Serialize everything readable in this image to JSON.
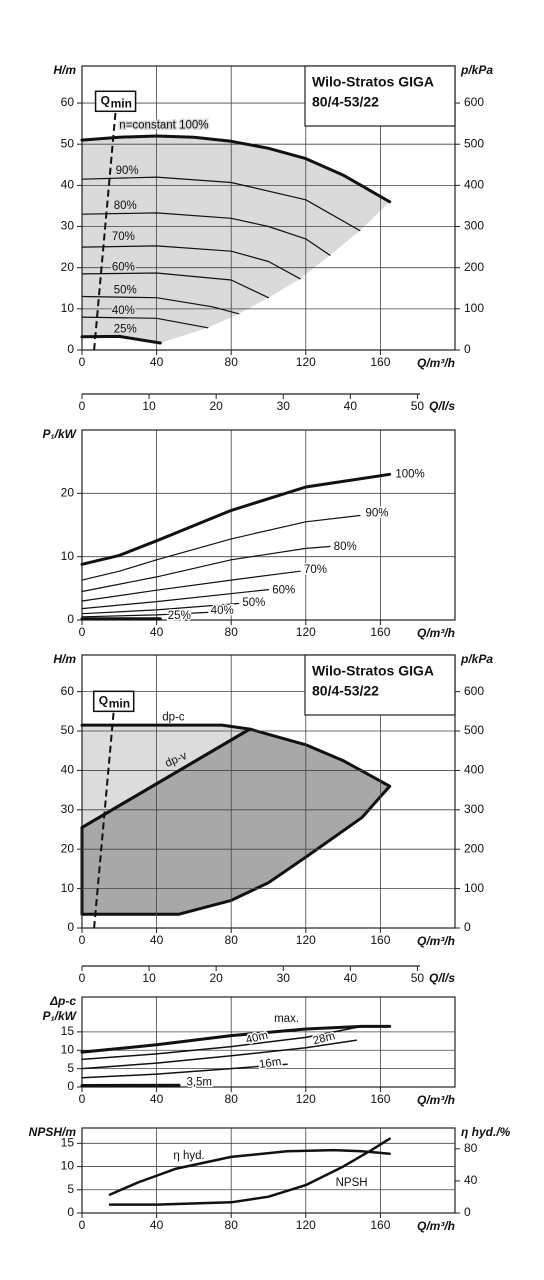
{
  "chart_data": [
    {
      "type": "line",
      "title": "Wilo-Stratos GIGA",
      "subtitle": "80/4-53/22",
      "ylabel": [
        "H/m"
      ],
      "y2label": "p/kPa",
      "xlabel": "Q/m³/h",
      "x2label": "Q/l/s",
      "xlim": [
        0,
        200
      ],
      "xticks": [
        0,
        40,
        80,
        120,
        160
      ],
      "x2lim": [
        0,
        55.6
      ],
      "x2ticks": [
        0,
        10,
        20,
        30,
        40,
        50
      ],
      "ylim": [
        0,
        69
      ],
      "yticks": [
        0,
        10,
        20,
        30,
        40,
        50,
        60
      ],
      "y2lim": [
        0,
        690
      ],
      "y2ticks": [
        0,
        100,
        200,
        300,
        400,
        500,
        600
      ],
      "grid": true,
      "qmin": {
        "label": "Q",
        "sub": "min",
        "x": [
          6.5,
          18
        ],
        "values": [
          0,
          58
        ]
      },
      "regions": [
        {
          "color": "#dadada",
          "x": [
            0,
            20,
            40,
            60,
            80,
            100,
            120,
            140,
            165,
            149,
            133,
            117,
            100,
            84,
            67.5,
            42,
            20,
            0
          ],
          "values": [
            51,
            51.7,
            52,
            51.7,
            50.7,
            49,
            46.5,
            42.5,
            36,
            29,
            23,
            17.3,
            12.7,
            8.8,
            5.4,
            1.7,
            3.3,
            3.2
          ]
        }
      ],
      "series": [
        {
          "name": "n=constant 100%",
          "color": "#111111",
          "width": 3,
          "x": [
            0,
            20,
            40,
            60,
            80,
            100,
            120,
            140,
            165
          ],
          "values": [
            51,
            51.7,
            52,
            51.7,
            50.7,
            49,
            46.5,
            42.5,
            36
          ]
        },
        {
          "name": "90%",
          "color": "#111111",
          "width": 1.2,
          "x": [
            0,
            40,
            80,
            120,
            149
          ],
          "values": [
            41.5,
            42,
            40.7,
            36.5,
            29
          ]
        },
        {
          "name": "80%",
          "color": "#111111",
          "width": 1.2,
          "x": [
            0,
            40,
            80,
            100,
            120,
            133
          ],
          "values": [
            33,
            33.3,
            32,
            30,
            27,
            23
          ]
        },
        {
          "name": "70%",
          "color": "#111111",
          "width": 1.2,
          "x": [
            0,
            40,
            80,
            100,
            117
          ],
          "values": [
            25,
            25.3,
            24,
            21.5,
            17.3
          ]
        },
        {
          "name": "60%",
          "color": "#111111",
          "width": 1.2,
          "x": [
            0,
            40,
            80,
            100
          ],
          "values": [
            18.5,
            18.7,
            17,
            12.7
          ]
        },
        {
          "name": "50%",
          "color": "#111111",
          "width": 1.2,
          "x": [
            0,
            40,
            70,
            84
          ],
          "values": [
            13,
            12.7,
            10.5,
            8.8
          ]
        },
        {
          "name": "40%",
          "color": "#111111",
          "width": 1.2,
          "x": [
            0,
            40,
            67.5
          ],
          "values": [
            8,
            7.7,
            5.4
          ]
        },
        {
          "name": "25%",
          "color": "#111111",
          "width": 3,
          "x": [
            0,
            20,
            42
          ],
          "values": [
            3.2,
            3.3,
            1.7
          ]
        }
      ]
    },
    {
      "type": "line",
      "ylabel": [
        "P₁/kW"
      ],
      "xlabel": "Q/m³/h",
      "xlim": [
        0,
        200
      ],
      "xticks": [
        0,
        40,
        80,
        120,
        160
      ],
      "ylim": [
        0,
        30
      ],
      "yticks": [
        0,
        10,
        20
      ],
      "grid": true,
      "series": [
        {
          "name": "100%",
          "color": "#111111",
          "width": 3,
          "x": [
            0,
            20,
            40,
            80,
            120,
            165
          ],
          "values": [
            8.8,
            10.2,
            12.5,
            17.3,
            21,
            23
          ]
        },
        {
          "name": "90%",
          "color": "#111111",
          "width": 1.2,
          "x": [
            0,
            20,
            40,
            80,
            120,
            149
          ],
          "values": [
            6.3,
            7.7,
            9.5,
            12.8,
            15.5,
            16.5
          ]
        },
        {
          "name": "80%",
          "color": "#111111",
          "width": 1.2,
          "x": [
            0,
            40,
            80,
            120,
            133
          ],
          "values": [
            4.5,
            6.8,
            9.5,
            11.3,
            11.6
          ]
        },
        {
          "name": "70%",
          "color": "#111111",
          "width": 1.2,
          "x": [
            0,
            40,
            80,
            117
          ],
          "values": [
            3,
            4.7,
            6.3,
            7.7
          ]
        },
        {
          "name": "60%",
          "color": "#111111",
          "width": 1.2,
          "x": [
            0,
            40,
            100
          ],
          "values": [
            1.8,
            2.9,
            4.8
          ]
        },
        {
          "name": "50%",
          "color": "#111111",
          "width": 1.2,
          "x": [
            0,
            40,
            84
          ],
          "values": [
            1,
            1.6,
            2.6
          ]
        },
        {
          "name": "40%",
          "color": "#111111",
          "width": 1.2,
          "x": [
            0,
            40,
            67.5
          ],
          "values": [
            0.5,
            0.8,
            1.2
          ]
        },
        {
          "name": "25%",
          "color": "#111111",
          "width": 3,
          "x": [
            0,
            42
          ],
          "values": [
            0.2,
            0.2
          ]
        }
      ]
    },
    {
      "type": "line",
      "title": "Wilo-Stratos GIGA",
      "subtitle": "80/4-53/22",
      "ylabel": [
        "H/m"
      ],
      "y2label": "p/kPa",
      "xlabel": "Q/m³/h",
      "x2label": "Q/l/s",
      "xlim": [
        0,
        200
      ],
      "xticks": [
        0,
        40,
        80,
        120,
        160
      ],
      "x2lim": [
        0,
        55.6
      ],
      "x2ticks": [
        0,
        10,
        20,
        30,
        40,
        50
      ],
      "ylim": [
        0,
        69.3
      ],
      "yticks": [
        0,
        10,
        20,
        30,
        40,
        50,
        60
      ],
      "y2lim": [
        0,
        693
      ],
      "y2ticks": [
        0,
        100,
        200,
        300,
        400,
        500,
        600
      ],
      "grid": true,
      "qmin": {
        "label": "Q",
        "sub": "min",
        "x": [
          6.5,
          17
        ],
        "values": [
          0,
          55
        ]
      },
      "regions": [
        {
          "color": "#dcdcdc",
          "x": [
            0,
            75,
            90,
            0
          ],
          "values": [
            51.5,
            51.5,
            50.5,
            25.5
          ]
        },
        {
          "color": "#a8a8a8",
          "x": [
            0,
            90,
            120,
            140,
            165,
            150,
            120,
            100,
            80,
            52,
            0
          ],
          "values": [
            25.5,
            50.5,
            46.5,
            42.5,
            36,
            28,
            18,
            11.5,
            7,
            3.5,
            3.5
          ]
        }
      ],
      "series": [
        {
          "name": "dp-c",
          "color": "#111111",
          "width": 3,
          "x": [
            0,
            75,
            90
          ],
          "values": [
            51.5,
            51.5,
            50.5
          ]
        },
        {
          "name": "dp-v",
          "color": "#111111",
          "width": 3,
          "x": [
            0,
            90
          ],
          "values": [
            25.5,
            50.5
          ]
        }
      ]
    },
    {
      "type": "line",
      "ylabel": [
        "Δp-c",
        "P₁/kW"
      ],
      "xlabel": "Q/m³/h",
      "xlim": [
        0,
        200
      ],
      "xticks": [
        0,
        40,
        80,
        120,
        160
      ],
      "ylim": [
        0,
        24.5
      ],
      "yticks": [
        0,
        5,
        10,
        15
      ],
      "grid": true,
      "series": [
        {
          "name": "max.",
          "color": "#111111",
          "width": 3,
          "x": [
            0,
            40,
            80,
            120,
            150,
            165
          ],
          "values": [
            9.5,
            11.5,
            14,
            15.8,
            16.5,
            16.5
          ]
        },
        {
          "name": "40m",
          "color": "#111111",
          "width": 1.5,
          "x": [
            0,
            40,
            80,
            120,
            148
          ],
          "values": [
            7.5,
            9,
            11,
            13.5,
            16.3
          ]
        },
        {
          "name": "28m",
          "color": "#111111",
          "width": 1.5,
          "x": [
            0,
            40,
            80,
            120,
            147
          ],
          "values": [
            5,
            6.5,
            8.5,
            10.7,
            12.7
          ]
        },
        {
          "name": "16m",
          "color": "#111111",
          "width": 1.5,
          "x": [
            0,
            40,
            80,
            110
          ],
          "values": [
            2.5,
            3.5,
            5,
            6.2
          ]
        },
        {
          "name": "3,5m",
          "color": "#111111",
          "width": 3,
          "x": [
            0,
            52
          ],
          "values": [
            0.4,
            0.5
          ]
        }
      ]
    },
    {
      "type": "line",
      "ylabel": [
        "NPSH/m"
      ],
      "y2label": "η hyd./%",
      "xlabel": "Q/m³/h",
      "xlim": [
        0,
        200
      ],
      "xticks": [
        0,
        40,
        80,
        120,
        160
      ],
      "ylim": [
        0,
        18.3
      ],
      "yticks": [
        0,
        5,
        10,
        15
      ],
      "y2lim": [
        0,
        106
      ],
      "y2ticks": [
        0,
        40,
        80
      ],
      "grid": true,
      "series": [
        {
          "name": "η hyd.",
          "color": "#111111",
          "width": 2.5,
          "axis": "y2",
          "x": [
            15,
            30,
            50,
            80,
            110,
            135,
            150,
            165
          ],
          "values": [
            23,
            38,
            55,
            70,
            77,
            78.5,
            77,
            74
          ]
        },
        {
          "name": "NPSH",
          "color": "#111111",
          "width": 2.5,
          "x": [
            15,
            40,
            80,
            100,
            120,
            140,
            155,
            165
          ],
          "values": [
            1.8,
            1.8,
            2.3,
            3.5,
            6,
            10,
            13.5,
            16
          ]
        }
      ]
    }
  ]
}
